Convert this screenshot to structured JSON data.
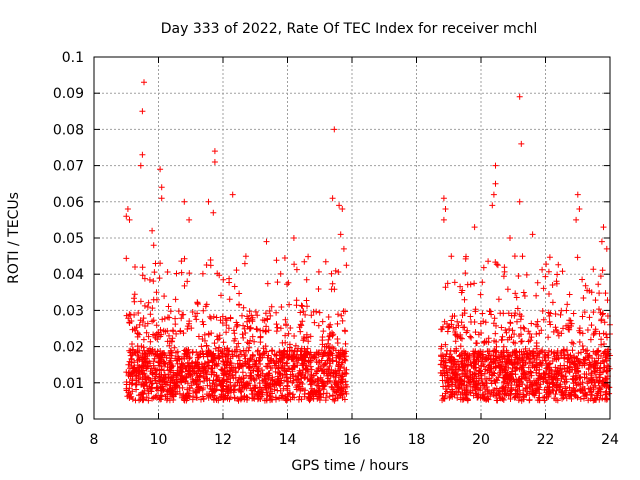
{
  "chart_data": {
    "type": "scatter",
    "title": "Day 333 of 2022, Rate Of TEC Index for receiver mchl",
    "xlabel": "GPS time / hours",
    "ylabel": "ROTI / TECUs",
    "xlim": [
      8,
      24
    ],
    "ylim": [
      0,
      0.1
    ],
    "x_ticks": [
      "8",
      "10",
      "12",
      "14",
      "16",
      "18",
      "20",
      "22",
      "24"
    ],
    "y_ticks": [
      "0",
      "0.01",
      "0.02",
      "0.03",
      "0.04",
      "0.05",
      "0.06",
      "0.07",
      "0.08",
      "0.09",
      "0.1"
    ],
    "grid": true,
    "marker": "+",
    "marker_color": "#ff0000",
    "series": [
      {
        "name": "ROTI",
        "segments": [
          {
            "start": 9.0,
            "end": 15.85
          },
          {
            "start": 18.75,
            "end": 24.0
          }
        ],
        "points": [
          {
            "x": 9.55,
            "y": 0.093
          },
          {
            "x": 9.5,
            "y": 0.085
          },
          {
            "x": 9.5,
            "y": 0.073
          },
          {
            "x": 9.45,
            "y": 0.07
          },
          {
            "x": 10.05,
            "y": 0.069
          },
          {
            "x": 10.1,
            "y": 0.064
          },
          {
            "x": 10.1,
            "y": 0.061
          },
          {
            "x": 9.0,
            "y": 0.056
          },
          {
            "x": 9.05,
            "y": 0.058
          },
          {
            "x": 9.1,
            "y": 0.055
          },
          {
            "x": 9.8,
            "y": 0.052
          },
          {
            "x": 9.85,
            "y": 0.048
          },
          {
            "x": 10.8,
            "y": 0.06
          },
          {
            "x": 10.95,
            "y": 0.055
          },
          {
            "x": 11.55,
            "y": 0.06
          },
          {
            "x": 11.75,
            "y": 0.074
          },
          {
            "x": 11.75,
            "y": 0.071
          },
          {
            "x": 11.7,
            "y": 0.057
          },
          {
            "x": 12.3,
            "y": 0.062
          },
          {
            "x": 13.35,
            "y": 0.049
          },
          {
            "x": 14.2,
            "y": 0.05
          },
          {
            "x": 15.45,
            "y": 0.08
          },
          {
            "x": 15.4,
            "y": 0.061
          },
          {
            "x": 15.6,
            "y": 0.059
          },
          {
            "x": 15.7,
            "y": 0.058
          },
          {
            "x": 15.65,
            "y": 0.051
          },
          {
            "x": 15.75,
            "y": 0.047
          },
          {
            "x": 18.85,
            "y": 0.061
          },
          {
            "x": 18.9,
            "y": 0.058
          },
          {
            "x": 18.85,
            "y": 0.055
          },
          {
            "x": 19.8,
            "y": 0.053
          },
          {
            "x": 20.45,
            "y": 0.07
          },
          {
            "x": 20.45,
            "y": 0.065
          },
          {
            "x": 20.4,
            "y": 0.062
          },
          {
            "x": 20.35,
            "y": 0.059
          },
          {
            "x": 21.2,
            "y": 0.089
          },
          {
            "x": 21.25,
            "y": 0.076
          },
          {
            "x": 21.2,
            "y": 0.06
          },
          {
            "x": 20.9,
            "y": 0.05
          },
          {
            "x": 21.05,
            "y": 0.045
          },
          {
            "x": 21.6,
            "y": 0.051
          },
          {
            "x": 23.0,
            "y": 0.062
          },
          {
            "x": 23.05,
            "y": 0.058
          },
          {
            "x": 22.95,
            "y": 0.055
          },
          {
            "x": 23.8,
            "y": 0.053
          },
          {
            "x": 23.75,
            "y": 0.049
          },
          {
            "x": 23.9,
            "y": 0.047
          }
        ]
      }
    ]
  }
}
